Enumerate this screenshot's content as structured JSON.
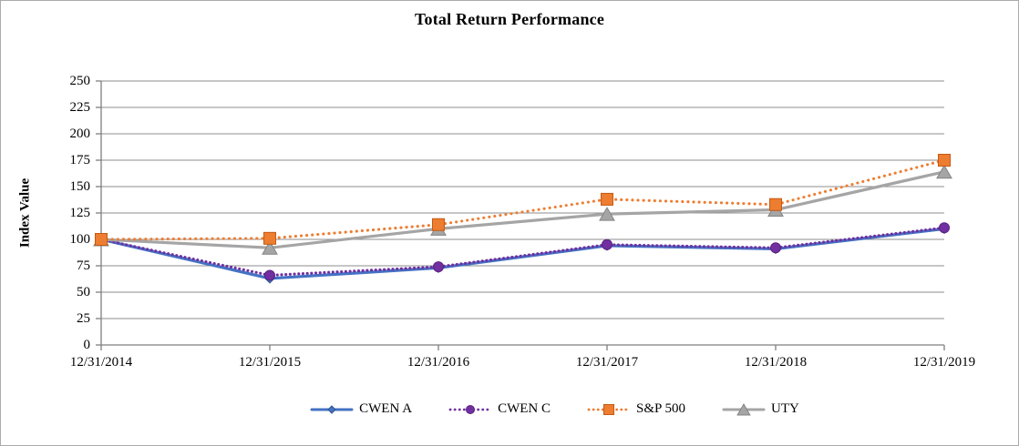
{
  "window": {
    "background": "#FFFFFF",
    "border_color": "#ABABAB"
  },
  "colors": {
    "gridline": "#8C8C8C",
    "axis_line": "#7F7F7F",
    "text": "#000000"
  },
  "chart_data": {
    "type": "line",
    "title": "Total Return Performance",
    "xlabel": "",
    "ylabel": "Index Value",
    "categories": [
      "12/31/2014",
      "12/31/2015",
      "12/31/2016",
      "12/31/2017",
      "12/31/2018",
      "12/31/2019"
    ],
    "ylim": [
      0,
      250
    ],
    "yticks": [
      0,
      25,
      50,
      75,
      100,
      125,
      150,
      175,
      200,
      225,
      250
    ],
    "grid": "horizontal",
    "legend_position": "bottom-center",
    "series": [
      {
        "name": "CWEN A",
        "values": [
          100,
          63,
          73,
          94,
          91,
          110
        ],
        "color": "#4472C4",
        "marker_edge": "#2E548F",
        "line_style": "solid",
        "marker": "diamond"
      },
      {
        "name": "CWEN C",
        "values": [
          100,
          66,
          74,
          95,
          92,
          111
        ],
        "color": "#7030A0",
        "marker_edge": "#5B2182",
        "line_style": "dotted",
        "marker": "circle"
      },
      {
        "name": "S&P 500",
        "values": [
          100,
          101,
          114,
          138,
          133,
          175
        ],
        "color": "#ED7D31",
        "marker_edge": "#C55A11",
        "line_style": "dotted",
        "marker": "square"
      },
      {
        "name": "UTY",
        "values": [
          100,
          92,
          110,
          124,
          128,
          164
        ],
        "color": "#A5A5A5",
        "marker_edge": "#848484",
        "line_style": "solid",
        "marker": "triangle"
      }
    ]
  }
}
